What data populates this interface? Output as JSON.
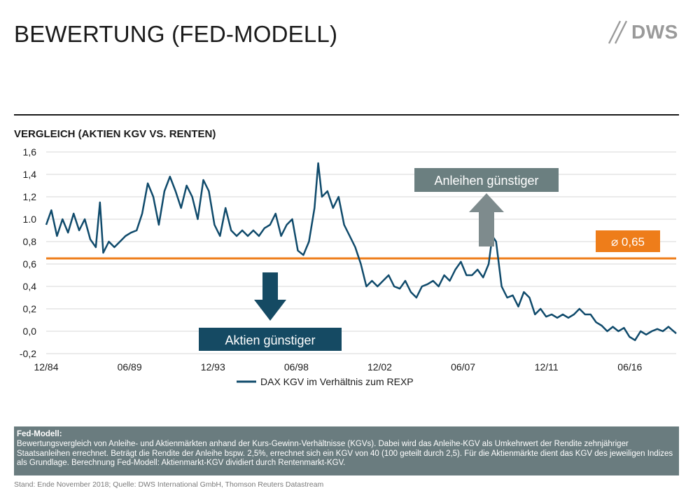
{
  "header": {
    "title": "BEWERTUNG (FED-MODELL)",
    "logo_text": "DWS"
  },
  "chart_section": {
    "subtitle": "VERGLEICH (AKTIEN KGV VS. RENTEN)"
  },
  "colors": {
    "series": "#0f4a6b",
    "average": "#ee7d1a",
    "grid": "#d7d7d7",
    "callout_aktien": "#154a63",
    "callout_anleihen": "#6b7f80",
    "arrow_up": "#7e8b8d",
    "infobox": "#6a7c7f"
  },
  "chart_data": {
    "type": "line",
    "title": "VERGLEICH (AKTIEN KGV VS. RENTEN)",
    "ylim": [
      -0.2,
      1.6
    ],
    "yticks": [
      -0.2,
      0.0,
      0.2,
      0.4,
      0.6,
      0.8,
      1.0,
      1.2,
      1.4,
      1.6
    ],
    "ytick_labels": [
      "-0,2",
      "0,0",
      "0,2",
      "0,4",
      "0,6",
      "0,8",
      "1.0",
      "1,2",
      "1,4",
      "1,6"
    ],
    "xlim": [
      1984.92,
      2018.92
    ],
    "xticks": [
      1984.92,
      1989.42,
      1993.92,
      1998.42,
      2002.92,
      2007.42,
      2011.92,
      2016.42
    ],
    "xtick_labels": [
      "12/84",
      "06/89",
      "12/93",
      "06/98",
      "12/02",
      "06/07",
      "12/11",
      "06/16"
    ],
    "grid": true,
    "legend": "bottom-center",
    "series": [
      {
        "name": "DAX KGV im Verhältnis zum REXP",
        "x": [
          1984.92,
          1985.2,
          1985.5,
          1985.8,
          1986.1,
          1986.4,
          1986.7,
          1987.0,
          1987.3,
          1987.6,
          1987.82,
          1988.0,
          1988.3,
          1988.6,
          1988.9,
          1989.2,
          1989.5,
          1989.8,
          1990.1,
          1990.4,
          1990.7,
          1991.0,
          1991.3,
          1991.6,
          1991.9,
          1992.2,
          1992.5,
          1992.8,
          1993.1,
          1993.4,
          1993.7,
          1994.0,
          1994.3,
          1994.6,
          1994.9,
          1995.2,
          1995.5,
          1995.8,
          1996.1,
          1996.4,
          1996.7,
          1997.0,
          1997.3,
          1997.6,
          1997.9,
          1998.2,
          1998.5,
          1998.8,
          1999.1,
          1999.4,
          1999.6,
          1999.8,
          2000.1,
          2000.4,
          2000.7,
          2001.0,
          2001.3,
          2001.6,
          2001.9,
          2002.2,
          2002.5,
          2002.8,
          2003.1,
          2003.4,
          2003.7,
          2004.0,
          2004.3,
          2004.6,
          2004.9,
          2005.2,
          2005.5,
          2005.8,
          2006.1,
          2006.4,
          2006.7,
          2007.0,
          2007.3,
          2007.6,
          2007.9,
          2008.2,
          2008.5,
          2008.8,
          2009.0,
          2009.2,
          2009.5,
          2009.8,
          2010.1,
          2010.4,
          2010.7,
          2011.0,
          2011.3,
          2011.6,
          2011.9,
          2012.2,
          2012.5,
          2012.8,
          2013.1,
          2013.4,
          2013.7,
          2014.0,
          2014.3,
          2014.6,
          2014.9,
          2015.2,
          2015.5,
          2015.8,
          2016.1,
          2016.4,
          2016.7,
          2017.0,
          2017.3,
          2017.6,
          2017.9,
          2018.2,
          2018.5,
          2018.92
        ],
        "values": [
          0.95,
          1.08,
          0.85,
          1.0,
          0.88,
          1.05,
          0.9,
          1.0,
          0.82,
          0.75,
          1.15,
          0.7,
          0.8,
          0.75,
          0.8,
          0.85,
          0.88,
          0.9,
          1.05,
          1.32,
          1.2,
          0.95,
          1.25,
          1.38,
          1.25,
          1.1,
          1.3,
          1.2,
          1.0,
          1.35,
          1.25,
          0.95,
          0.85,
          1.1,
          0.9,
          0.85,
          0.9,
          0.85,
          0.9,
          0.85,
          0.92,
          0.95,
          1.05,
          0.85,
          0.95,
          1.0,
          0.72,
          0.68,
          0.8,
          1.1,
          1.5,
          1.2,
          1.25,
          1.1,
          1.2,
          0.95,
          0.85,
          0.75,
          0.6,
          0.4,
          0.45,
          0.4,
          0.45,
          0.5,
          0.4,
          0.38,
          0.45,
          0.35,
          0.3,
          0.4,
          0.42,
          0.45,
          0.4,
          0.5,
          0.45,
          0.55,
          0.62,
          0.5,
          0.5,
          0.55,
          0.48,
          0.6,
          0.85,
          0.8,
          0.4,
          0.3,
          0.32,
          0.22,
          0.35,
          0.3,
          0.15,
          0.2,
          0.13,
          0.15,
          0.12,
          0.15,
          0.12,
          0.15,
          0.2,
          0.15,
          0.15,
          0.08,
          0.05,
          0.0,
          0.04,
          0.0,
          0.03,
          -0.05,
          -0.08,
          0.0,
          -0.03,
          0.0,
          0.02,
          0.0,
          0.04,
          -0.02
        ]
      }
    ],
    "average": {
      "value": 0.65,
      "label": "⌀ 0,65"
    },
    "annotations": [
      {
        "label": "Aktien günstiger",
        "arrow": "down"
      },
      {
        "label": "Anleihen günstiger",
        "arrow": "up"
      }
    ]
  },
  "info": {
    "title": "Fed-Modell:",
    "text": "Bewertungsvergleich von Anleihe- und Aktienmärkten anhand der Kurs-Gewinn-Verhältnisse (KGVs). Dabei wird das Anleihe-KGV als Umkehrwert der Rendite zehnjähriger Staatsanleihen errechnet. Beträgt  die Rendite der Anleihe bspw. 2,5%, errechnet sich ein KGV von 40 (100 geteilt durch 2,5). Für die Aktienmärkte dient das KGV des jeweiligen Indizes als Grundlage. Berechnung Fed-Modell: Aktienmarkt-KGV dividiert durch Rentenmarkt-KGV."
  },
  "footer": {
    "source": "Stand: Ende November 2018; Quelle: DWS International GmbH, Thomson Reuters Datastream"
  }
}
